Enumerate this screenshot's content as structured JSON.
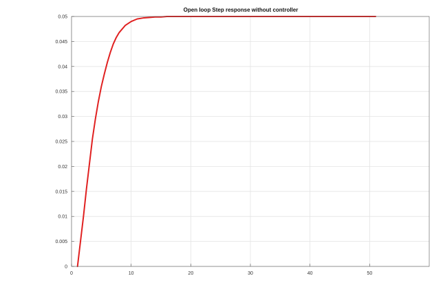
{
  "chart_data": {
    "type": "line",
    "title": "Open loop Step response without controller",
    "xlabel": "",
    "ylabel": "",
    "xlim": [
      0,
      60
    ],
    "ylim": [
      0,
      0.05
    ],
    "x_ticks": [
      0,
      10,
      20,
      30,
      40,
      50
    ],
    "x_tick_labels": [
      "0",
      "10",
      "20",
      "30",
      "40",
      "50"
    ],
    "y_ticks": [
      0,
      0.005,
      0.01,
      0.015,
      0.02,
      0.025,
      0.03,
      0.035,
      0.04,
      0.045,
      0.05
    ],
    "y_tick_labels": [
      "0",
      "0.005",
      "0.01",
      "0.015",
      "0.02",
      "0.025",
      "0.03",
      "0.035",
      "0.04",
      "0.045",
      "0.05"
    ],
    "grid": true,
    "legend": "none",
    "series": [
      {
        "color": "#e02020",
        "x": [
          1,
          1.5,
          2,
          2.5,
          3,
          3.5,
          4,
          4.5,
          5,
          5.5,
          6,
          6.5,
          7,
          7.5,
          8,
          9,
          10,
          11,
          12,
          13,
          14,
          15,
          16,
          18,
          20,
          25,
          30,
          35,
          40,
          45,
          51
        ],
        "y": [
          0,
          0.005,
          0.01,
          0.0155,
          0.0205,
          0.0255,
          0.0295,
          0.033,
          0.036,
          0.0385,
          0.0408,
          0.0428,
          0.0445,
          0.0458,
          0.0468,
          0.0482,
          0.049,
          0.0495,
          0.0497,
          0.0498,
          0.0499,
          0.0499,
          0.05,
          0.05,
          0.05,
          0.05,
          0.05,
          0.05,
          0.05,
          0.05,
          0.05
        ]
      }
    ]
  }
}
